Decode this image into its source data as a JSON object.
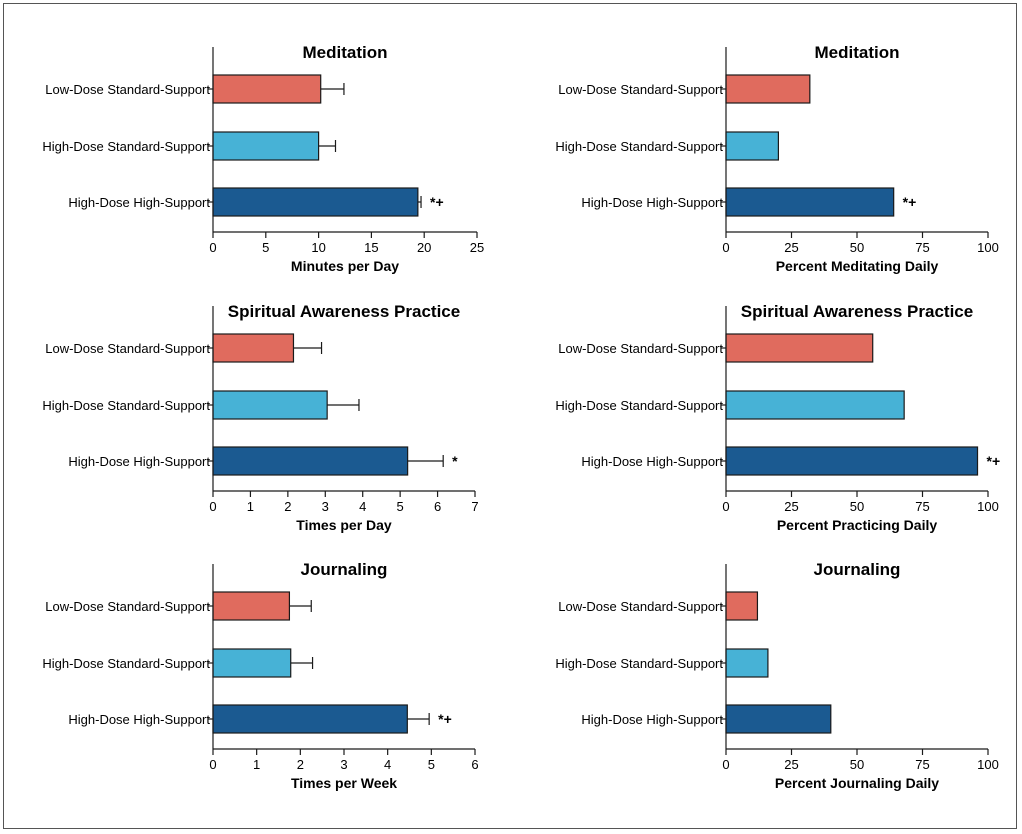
{
  "colors": {
    "low_dose_standard": "#E06B5E",
    "high_dose_standard": "#47B2D6",
    "high_dose_high": "#1B5A91"
  },
  "chart_data": [
    {
      "type": "bar",
      "orientation": "horizontal",
      "title": "Meditation",
      "xlabel": "Minutes per Day",
      "categories": [
        "Low-Dose Standard-Support",
        "High-Dose Standard-Support",
        "High-Dose High-Support"
      ],
      "values": [
        10.2,
        10.0,
        19.4
      ],
      "errors": [
        2.2,
        1.6,
        0.3
      ],
      "annotations": [
        "",
        "",
        "*+"
      ],
      "xlim": [
        0,
        25
      ],
      "xticks": [
        0,
        5,
        10,
        15,
        20,
        25
      ]
    },
    {
      "type": "bar",
      "orientation": "horizontal",
      "title": "Meditation",
      "xlabel": "Percent Meditating Daily",
      "categories": [
        "Low-Dose Standard-Support",
        "High-Dose Standard-Support",
        "High-Dose High-Support"
      ],
      "values": [
        32,
        20,
        64
      ],
      "errors": null,
      "annotations": [
        "",
        "",
        "*+"
      ],
      "xlim": [
        0,
        100
      ],
      "xticks": [
        0,
        25,
        50,
        75,
        100
      ]
    },
    {
      "type": "bar",
      "orientation": "horizontal",
      "title": "Spiritual Awareness Practice",
      "xlabel": "Times per Day",
      "categories": [
        "Low-Dose Standard-Support",
        "High-Dose Standard-Support",
        "High-Dose High-Support"
      ],
      "values": [
        2.15,
        3.05,
        5.2
      ],
      "errors": [
        0.75,
        0.85,
        0.95
      ],
      "annotations": [
        "",
        "",
        "*"
      ],
      "xlim": [
        0,
        7
      ],
      "xticks": [
        0,
        1,
        2,
        3,
        4,
        5,
        6,
        7
      ]
    },
    {
      "type": "bar",
      "orientation": "horizontal",
      "title": "Spiritual Awareness Practice",
      "xlabel": "Percent Practicing Daily",
      "categories": [
        "Low-Dose Standard-Support",
        "High-Dose Standard-Support",
        "High-Dose High-Support"
      ],
      "values": [
        56,
        68,
        96
      ],
      "errors": null,
      "annotations": [
        "",
        "",
        "*+"
      ],
      "xlim": [
        0,
        100
      ],
      "xticks": [
        0,
        25,
        50,
        75,
        100
      ]
    },
    {
      "type": "bar",
      "orientation": "horizontal",
      "title": "Journaling",
      "xlabel": "Times per Week",
      "categories": [
        "Low-Dose Standard-Support",
        "High-Dose Standard-Support",
        "High-Dose High-Support"
      ],
      "values": [
        1.75,
        1.78,
        4.45
      ],
      "errors": [
        0.5,
        0.5,
        0.5
      ],
      "annotations": [
        "",
        "",
        "*+"
      ],
      "xlim": [
        0,
        6
      ],
      "xticks": [
        0,
        1,
        2,
        3,
        4,
        5,
        6
      ]
    },
    {
      "type": "bar",
      "orientation": "horizontal",
      "title": "Journaling",
      "xlabel": "Percent Journaling Daily",
      "categories": [
        "Low-Dose Standard-Support",
        "High-Dose Standard-Support",
        "High-Dose High-Support"
      ],
      "values": [
        12,
        16,
        40
      ],
      "errors": null,
      "annotations": [
        "",
        "",
        ""
      ],
      "xlim": [
        0,
        100
      ],
      "xticks": [
        0,
        25,
        50,
        75,
        100
      ]
    }
  ]
}
